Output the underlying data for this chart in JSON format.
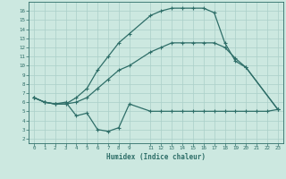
{
  "xlabel": "Humidex (Indice chaleur)",
  "bg_color": "#cce8e0",
  "grid_color": "#aacfc8",
  "line_color": "#2e6e68",
  "xlim": [
    -0.5,
    23.5
  ],
  "ylim": [
    1.5,
    17.0
  ],
  "xticks": [
    0,
    1,
    2,
    3,
    4,
    5,
    6,
    7,
    8,
    9,
    11,
    12,
    13,
    14,
    15,
    16,
    17,
    18,
    19,
    20,
    21,
    22,
    23
  ],
  "yticks": [
    2,
    3,
    4,
    5,
    6,
    7,
    8,
    9,
    10,
    11,
    12,
    13,
    14,
    15,
    16
  ],
  "curve_top": {
    "x": [
      0,
      1,
      2,
      3,
      4,
      5,
      6,
      7,
      8,
      9,
      11,
      12,
      13,
      14,
      15,
      16,
      17,
      18,
      19,
      20,
      23
    ],
    "y": [
      6.5,
      6.0,
      5.8,
      5.8,
      6.5,
      7.5,
      9.5,
      11.0,
      12.5,
      13.5,
      15.5,
      16.0,
      16.3,
      16.3,
      16.3,
      16.3,
      15.8,
      12.5,
      10.5,
      9.8,
      5.2
    ]
  },
  "curve_mid": {
    "x": [
      0,
      1,
      2,
      3,
      4,
      5,
      6,
      7,
      8,
      9,
      11,
      12,
      13,
      14,
      15,
      16,
      17,
      18,
      19,
      20,
      23
    ],
    "y": [
      6.5,
      6.0,
      5.8,
      5.8,
      6.0,
      6.5,
      7.5,
      8.5,
      9.5,
      10.0,
      11.5,
      12.0,
      12.5,
      12.5,
      12.5,
      12.5,
      12.5,
      12.0,
      10.8,
      9.8,
      5.2
    ]
  },
  "curve_bot": {
    "x": [
      0,
      1,
      2,
      3,
      4,
      5,
      6,
      7,
      8,
      9,
      11,
      12,
      13,
      14,
      15,
      16,
      17,
      18,
      19,
      20,
      21,
      22,
      23
    ],
    "y": [
      6.5,
      6.0,
      5.8,
      6.0,
      4.5,
      4.8,
      3.0,
      2.8,
      3.2,
      5.8,
      5.0,
      5.0,
      5.0,
      5.0,
      5.0,
      5.0,
      5.0,
      5.0,
      5.0,
      5.0,
      5.0,
      5.0,
      5.2
    ]
  }
}
